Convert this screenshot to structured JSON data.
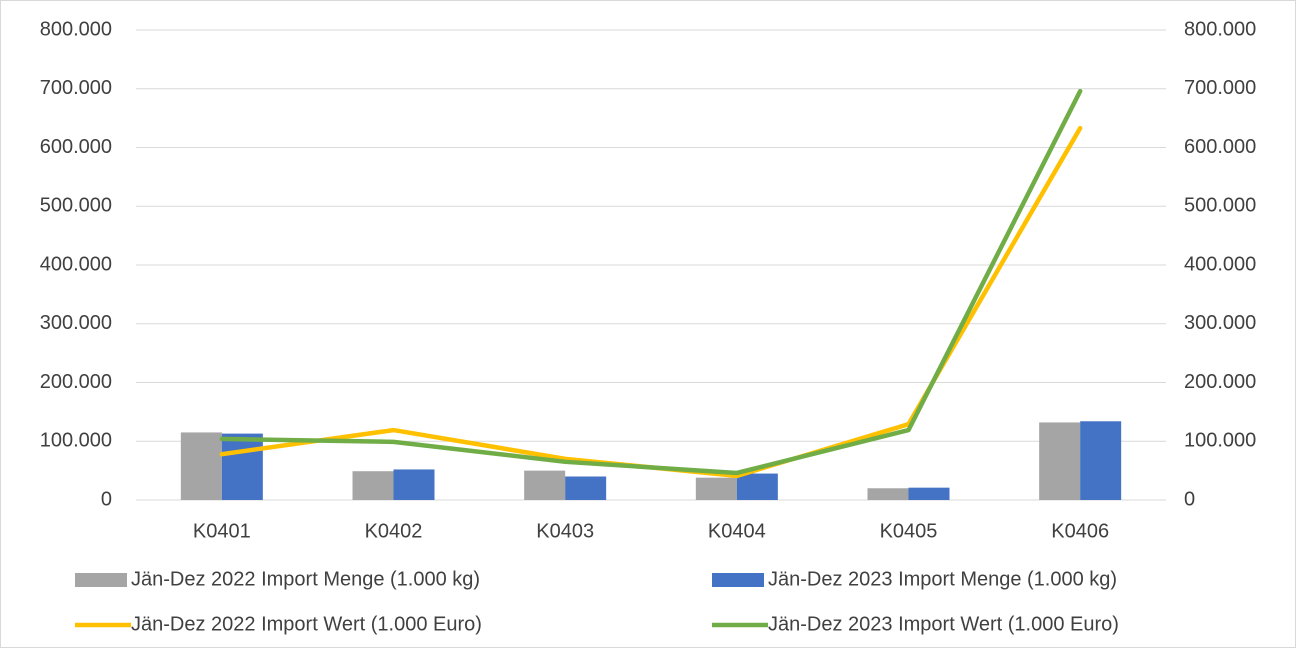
{
  "chart_data": {
    "type": "bar-line",
    "categories": [
      "K0401",
      "K0402",
      "K0403",
      "K0404",
      "K0405",
      "K0406"
    ],
    "series": [
      {
        "name": "Jän-Dez 2022 Import Menge (1.000 kg)",
        "type": "bar",
        "color": "#a5a5a5",
        "values": [
          115000,
          49000,
          50000,
          38000,
          20000,
          132000
        ]
      },
      {
        "name": "Jän-Dez 2023 Import Menge (1.000 kg)",
        "type": "bar",
        "color": "#4472c4",
        "values": [
          113000,
          52000,
          40000,
          45000,
          21000,
          134000
        ]
      },
      {
        "name": "Jän-Dez 2022 Import Wert (1.000 Euro)",
        "type": "line",
        "axis": "y2",
        "color": "#ffc000",
        "values": [
          78000,
          119000,
          70000,
          41000,
          129000,
          633000
        ]
      },
      {
        "name": "Jän-Dez 2023 Import Wert (1.000 Euro)",
        "type": "line",
        "axis": "y2",
        "color": "#70ad47",
        "values": [
          104000,
          99000,
          65000,
          46000,
          119000,
          696000
        ]
      }
    ],
    "ylim": [
      0,
      800000
    ],
    "yticks": [
      0,
      {
        "value": 100000,
        "label": "100.000"
      },
      {
        "value": 200000,
        "label": "200.000"
      },
      {
        "value": 300000,
        "label": "300.000"
      },
      {
        "value": 400000,
        "label": "400.000"
      },
      {
        "value": 500000,
        "label": "500.000"
      },
      {
        "value": 600000,
        "label": "600.000"
      },
      {
        "value": 700000,
        "label": "700.000"
      },
      {
        "value": 800000,
        "label": "800.000"
      }
    ],
    "y2lim": [
      0,
      800000
    ],
    "y2ticks": [
      0,
      {
        "value": 100000,
        "label": "100.000"
      },
      {
        "value": 200000,
        "label": "200.000"
      },
      {
        "value": 300000,
        "label": "300.000"
      },
      {
        "value": 400000,
        "label": "400.000"
      },
      {
        "value": 500000,
        "label": "500.000"
      },
      {
        "value": 600000,
        "label": "600.000"
      },
      {
        "value": 700000,
        "label": "700.000"
      },
      {
        "value": 800000,
        "label": "800.000"
      }
    ],
    "grid": true,
    "legend": "bottom"
  }
}
